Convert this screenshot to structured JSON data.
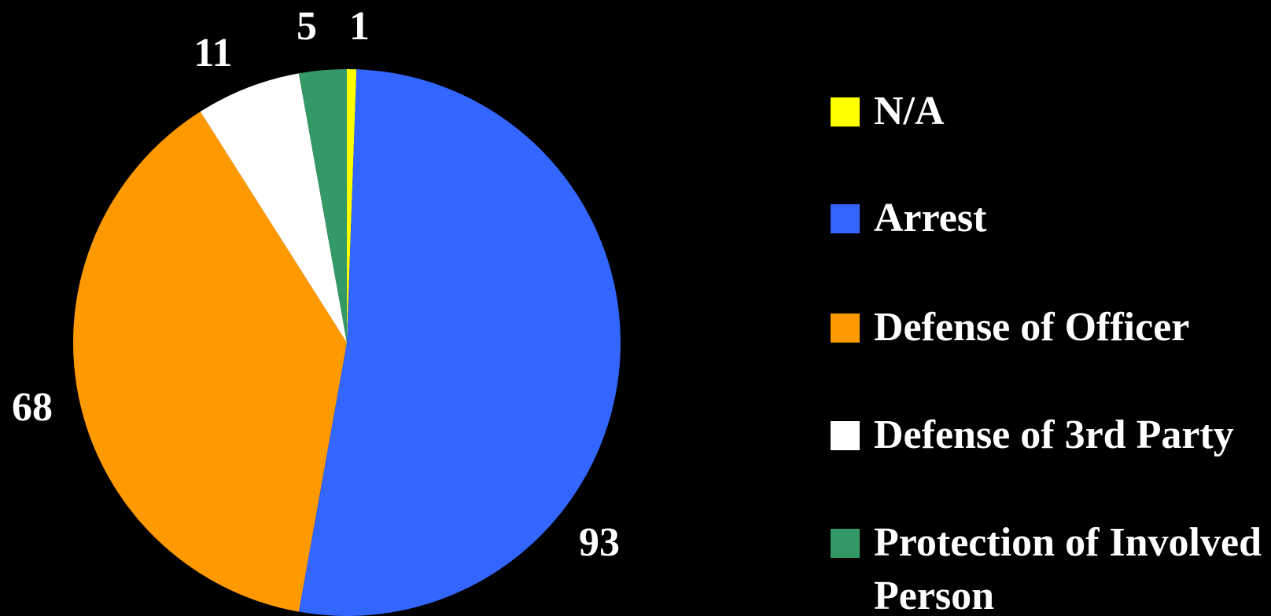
{
  "chart_data": {
    "type": "pie",
    "categories": [
      "N/A",
      "Arrest",
      "Defense of Officer",
      "Defense of 3rd Party",
      "Protection of Involved Person"
    ],
    "values": [
      1,
      93,
      68,
      11,
      5
    ],
    "colors": [
      "#ffff00",
      "#3366ff",
      "#ff9900",
      "#ffffff",
      "#339966"
    ],
    "legend": "right"
  }
}
